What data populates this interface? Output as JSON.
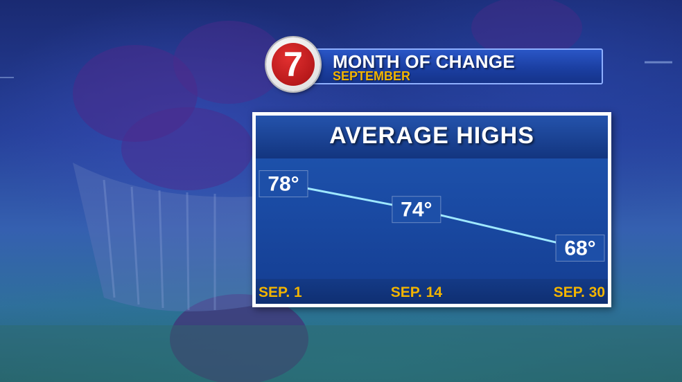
{
  "header": {
    "title": "MONTH OF CHANGE",
    "subtitle": "SEPTEMBER",
    "logo_text": "7"
  },
  "colors": {
    "accent_yellow": "#f2b400",
    "line": "#9fe8ff",
    "panel_blue": "#1a4aa3",
    "logo_red": "#c41a1c"
  },
  "chart_data": {
    "type": "line",
    "title": "AVERAGE HIGHS",
    "xlabel": "",
    "ylabel": "",
    "categories": [
      "SEP. 1",
      "SEP. 14",
      "SEP. 30"
    ],
    "values": [
      78,
      74,
      68
    ],
    "value_labels": [
      "78°",
      "74°",
      "68°"
    ],
    "x": [
      1,
      14,
      30
    ],
    "ylim": [
      66,
      80
    ],
    "grid": false,
    "legend": "none"
  }
}
